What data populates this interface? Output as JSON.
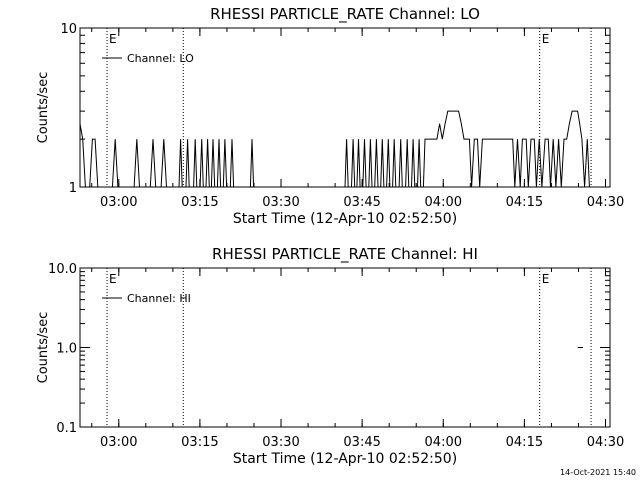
{
  "chart_data": [
    {
      "type": "line",
      "title": "RHESSI PARTICLE_RATE Channel: LO",
      "xlabel": "Start Time (12-Apr-10 02:52:50)",
      "ylabel": "Counts/sec",
      "y_scale": "log",
      "ylim": [
        1,
        10
      ],
      "y_ticks": [
        1,
        10
      ],
      "y_tick_labels": [
        "1",
        "10"
      ],
      "xlim_minutes_after_start": [
        0,
        98
      ],
      "x_ticks": [
        {
          "label": "03:00",
          "min": 7.17
        },
        {
          "label": "03:15",
          "min": 22.17
        },
        {
          "label": "03:30",
          "min": 37.17
        },
        {
          "label": "03:45",
          "min": 52.17
        },
        {
          "label": "04:00",
          "min": 67.17
        },
        {
          "label": "04:15",
          "min": 82.17
        },
        {
          "label": "04:30",
          "min": 97.17
        }
      ],
      "legend": {
        "placement": "top-left",
        "label": "Channel: LO"
      },
      "event_lines": [
        {
          "min": 5.0,
          "label": "E"
        },
        {
          "min": 19.1,
          "label": ""
        },
        {
          "min": 85.0,
          "label": "E"
        },
        {
          "min": 94.5,
          "label": ""
        }
      ],
      "series": [
        {
          "name": "Channel: LO",
          "points": [
            [
              0,
              2.5
            ],
            [
              0.5,
              2
            ],
            [
              1,
              1
            ],
            [
              1.8,
              1
            ],
            [
              2.3,
              2
            ],
            [
              2.8,
              2
            ],
            [
              3.3,
              1
            ],
            [
              6.0,
              1
            ],
            [
              6.5,
              2
            ],
            [
              7.0,
              1
            ],
            [
              10.0,
              1
            ],
            [
              10.5,
              2
            ],
            [
              11.0,
              1
            ],
            [
              13.0,
              1
            ],
            [
              13.5,
              2
            ],
            [
              14.0,
              1
            ],
            [
              15.0,
              1
            ],
            [
              15.5,
              2
            ],
            [
              16.0,
              1
            ],
            [
              18.3,
              1
            ],
            [
              18.6,
              2
            ],
            [
              18.9,
              1
            ],
            [
              19.6,
              1
            ],
            [
              19.9,
              2
            ],
            [
              20.2,
              1
            ],
            [
              21.0,
              1
            ],
            [
              21.3,
              2
            ],
            [
              21.6,
              1
            ],
            [
              22.2,
              1
            ],
            [
              22.5,
              2
            ],
            [
              22.8,
              1
            ],
            [
              23.3,
              1
            ],
            [
              23.6,
              2
            ],
            [
              23.9,
              1
            ],
            [
              24.3,
              1
            ],
            [
              24.6,
              2
            ],
            [
              24.9,
              1
            ],
            [
              25.4,
              1
            ],
            [
              25.7,
              2
            ],
            [
              26.0,
              1
            ],
            [
              26.5,
              1
            ],
            [
              26.8,
              2
            ],
            [
              27.1,
              1
            ],
            [
              27.8,
              1
            ],
            [
              28.1,
              2
            ],
            [
              28.4,
              1
            ],
            [
              31.5,
              1
            ],
            [
              31.8,
              2
            ],
            [
              32.1,
              1
            ],
            [
              49.0,
              1
            ],
            [
              49.3,
              2
            ],
            [
              49.6,
              1
            ],
            [
              50.2,
              1
            ],
            [
              50.5,
              2
            ],
            [
              50.8,
              1
            ],
            [
              51.2,
              1
            ],
            [
              51.5,
              2
            ],
            [
              51.8,
              1
            ],
            [
              52.3,
              1
            ],
            [
              52.6,
              2
            ],
            [
              52.9,
              1
            ],
            [
              53.4,
              1
            ],
            [
              53.7,
              2
            ],
            [
              54.0,
              1
            ],
            [
              54.5,
              1
            ],
            [
              54.8,
              2
            ],
            [
              55.1,
              1
            ],
            [
              55.6,
              1
            ],
            [
              55.9,
              2
            ],
            [
              56.2,
              1
            ],
            [
              56.7,
              1
            ],
            [
              57.0,
              2
            ],
            [
              57.3,
              1
            ],
            [
              57.8,
              1
            ],
            [
              58.1,
              2
            ],
            [
              58.4,
              1
            ],
            [
              59.0,
              1
            ],
            [
              59.3,
              2
            ],
            [
              59.6,
              1
            ],
            [
              60.2,
              1
            ],
            [
              60.5,
              2
            ],
            [
              60.8,
              1
            ],
            [
              61.3,
              1
            ],
            [
              61.6,
              2
            ],
            [
              61.9,
              1
            ],
            [
              62.4,
              1
            ],
            [
              62.7,
              2
            ],
            [
              63.0,
              1
            ],
            [
              63.5,
              1
            ],
            [
              63.8,
              2
            ],
            [
              66.0,
              2
            ],
            [
              66.5,
              2.5
            ],
            [
              67.0,
              2
            ],
            [
              67.5,
              2.5
            ],
            [
              68.0,
              3
            ],
            [
              70.0,
              3
            ],
            [
              70.5,
              2.5
            ],
            [
              71.0,
              2
            ],
            [
              72.0,
              2
            ],
            [
              72.4,
              1
            ],
            [
              72.9,
              2
            ],
            [
              73.5,
              2
            ],
            [
              73.9,
              1
            ],
            [
              74.4,
              2
            ],
            [
              80.0,
              2
            ],
            [
              80.4,
              1
            ],
            [
              80.9,
              2
            ],
            [
              81.4,
              1
            ],
            [
              81.8,
              2
            ],
            [
              82.5,
              2
            ],
            [
              82.9,
              1
            ],
            [
              83.4,
              2
            ],
            [
              84.0,
              2
            ],
            [
              84.4,
              1
            ],
            [
              84.9,
              2
            ],
            [
              85.4,
              1
            ],
            [
              86.0,
              2
            ],
            [
              86.6,
              2
            ],
            [
              87.0,
              1
            ],
            [
              87.5,
              2
            ],
            [
              88.0,
              1
            ],
            [
              88.5,
              2
            ],
            [
              89.0,
              1
            ],
            [
              89.5,
              2
            ],
            [
              90.0,
              2
            ],
            [
              90.5,
              2.5
            ],
            [
              91.0,
              3
            ],
            [
              92.0,
              3
            ],
            [
              92.4,
              2.5
            ],
            [
              92.8,
              2
            ],
            [
              93.3,
              1
            ],
            [
              93.8,
              2
            ],
            [
              94.2,
              1
            ],
            [
              94.5,
              1
            ]
          ]
        }
      ]
    },
    {
      "type": "line",
      "title": "RHESSI PARTICLE_RATE Channel: HI",
      "xlabel": "Start Time (12-Apr-10 02:52:50)",
      "ylabel": "Counts/sec",
      "y_scale": "log",
      "ylim": [
        0.1,
        10
      ],
      "y_ticks": [
        0.1,
        1,
        10
      ],
      "y_tick_labels": [
        "0.1",
        "1.0",
        "10.0"
      ],
      "xlim_minutes_after_start": [
        0,
        98
      ],
      "x_ticks": [
        {
          "label": "03:00",
          "min": 7.17
        },
        {
          "label": "03:15",
          "min": 22.17
        },
        {
          "label": "03:30",
          "min": 37.17
        },
        {
          "label": "03:45",
          "min": 52.17
        },
        {
          "label": "04:00",
          "min": 67.17
        },
        {
          "label": "04:15",
          "min": 82.17
        },
        {
          "label": "04:30",
          "min": 97.17
        }
      ],
      "legend": {
        "placement": "top-left",
        "label": "Channel: HI"
      },
      "event_lines": [
        {
          "min": 5.0,
          "label": "E"
        },
        {
          "min": 19.1,
          "label": ""
        },
        {
          "min": 85.0,
          "label": "E"
        },
        {
          "min": 94.5,
          "label": ""
        }
      ],
      "series": [
        {
          "name": "Channel: HI",
          "points": [
            [
              92.0,
              1
            ],
            [
              93.0,
              1
            ]
          ]
        }
      ]
    }
  ],
  "footer_timestamp": "14-Oct-2021 15:40"
}
